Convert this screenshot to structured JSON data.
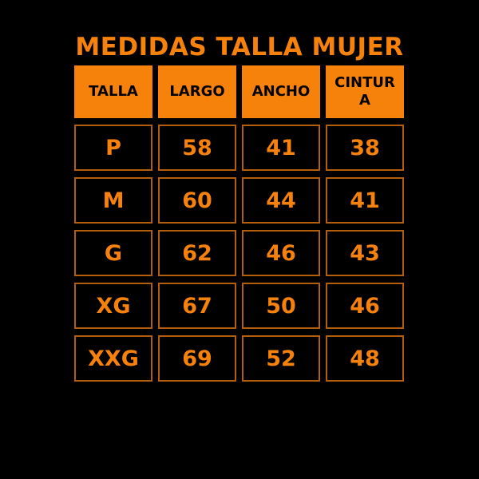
{
  "colors": {
    "background": "#000000",
    "orange": "#F7820B",
    "cell-border": "#B25E0D",
    "header-text": "#000000"
  },
  "chart_data": {
    "type": "table",
    "title": "MEDIDAS TALLA MUJER",
    "columns": [
      "TALLA",
      "LARGO",
      "ANCHO",
      "CINTURA"
    ],
    "rows": [
      [
        "P",
        58,
        41,
        38
      ],
      [
        "M",
        60,
        44,
        41
      ],
      [
        "G",
        62,
        46,
        43
      ],
      [
        "XG",
        67,
        50,
        46
      ],
      [
        "XXG",
        69,
        52,
        48
      ]
    ]
  }
}
